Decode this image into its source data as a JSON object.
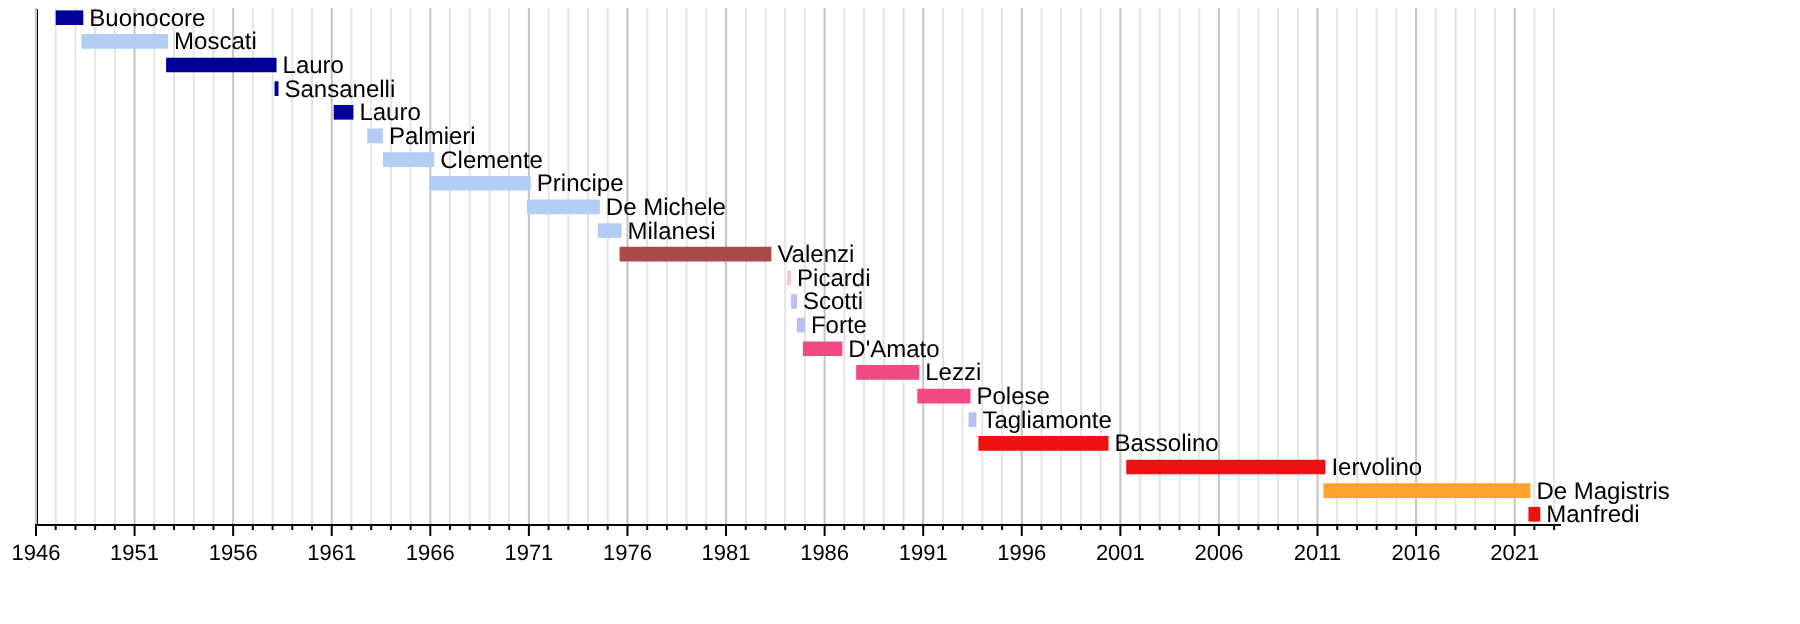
{
  "chart_data": {
    "type": "bar",
    "orientation": "horizontal",
    "grid": "x",
    "categories": [
      "Buonocore",
      "Moscati",
      "Lauro",
      "Sansanelli",
      "Lauro",
      "Palmieri",
      "Clemente",
      "Principe",
      "De Michele",
      "Milanesi",
      "Valenzi",
      "Picardi",
      "Scotti",
      "Forte",
      "D'Amato",
      "Lezzi",
      "Polese",
      "Tagliamonte",
      "Bassolino",
      "Iervolino",
      "De Magistris",
      "Manfredi"
    ],
    "base": [
      1947.0,
      1948.3,
      1952.6,
      1958.1,
      1961.1,
      1962.8,
      1963.6,
      1966.0,
      1970.9,
      1974.5,
      1975.6,
      1984.1,
      1984.3,
      1984.6,
      1984.9,
      1987.6,
      1990.7,
      1993.3,
      1993.8,
      2001.3,
      2011.3,
      2021.7
    ],
    "values": [
      1.4,
      4.4,
      5.6,
      0.2,
      1.0,
      0.8,
      2.6,
      5.1,
      3.7,
      1.2,
      7.7,
      0.2,
      0.3,
      0.4,
      2.0,
      3.2,
      2.7,
      0.4,
      6.6,
      10.1,
      10.5,
      0.6
    ],
    "colors": [
      "#000099",
      "#b3cdf5",
      "#000099",
      "#000099",
      "#000099",
      "#b3cdf5",
      "#b3cdf5",
      "#b3cdf5",
      "#b3cdf5",
      "#b3cdf5",
      "#aa4a4a",
      "#f5c5cf",
      "#b8c0f5",
      "#b8c0f5",
      "#f04a80",
      "#f04a80",
      "#f04a80",
      "#b8c0f5",
      "#ee1111",
      "#ee1111",
      "#ffa32c",
      "#ee1111"
    ],
    "xlim": [
      1946,
      2023.3
    ],
    "xticks": [
      1946,
      {
        "value": 1947,
        "label": null
      },
      {
        "value": 1948,
        "label": null
      },
      {
        "value": 1949,
        "label": null
      },
      {
        "value": 1950,
        "label": null
      },
      1951,
      {
        "value": 1952,
        "label": null
      },
      {
        "value": 1953,
        "label": null
      },
      {
        "value": 1954,
        "label": null
      },
      {
        "value": 1955,
        "label": null
      },
      1956,
      {
        "value": 1957,
        "label": null
      },
      {
        "value": 1958,
        "label": null
      },
      {
        "value": 1959,
        "label": null
      },
      {
        "value": 1960,
        "label": null
      },
      1961,
      {
        "value": 1962,
        "label": null
      },
      {
        "value": 1963,
        "label": null
      },
      {
        "value": 1964,
        "label": null
      },
      {
        "value": 1965,
        "label": null
      },
      1966,
      {
        "value": 1967,
        "label": null
      },
      {
        "value": 1968,
        "label": null
      },
      {
        "value": 1969,
        "label": null
      },
      {
        "value": 1970,
        "label": null
      },
      1971,
      {
        "value": 1972,
        "label": null
      },
      {
        "value": 1973,
        "label": null
      },
      {
        "value": 1974,
        "label": null
      },
      {
        "value": 1975,
        "label": null
      },
      1976,
      {
        "value": 1977,
        "label": null
      },
      {
        "value": 1978,
        "label": null
      },
      {
        "value": 1979,
        "label": null
      },
      {
        "value": 1980,
        "label": null
      },
      1981,
      {
        "value": 1982,
        "label": null
      },
      {
        "value": 1983,
        "label": null
      },
      {
        "value": 1984,
        "label": null
      },
      {
        "value": 1985,
        "label": null
      },
      1986,
      {
        "value": 1987,
        "label": null
      },
      {
        "value": 1988,
        "label": null
      },
      {
        "value": 1989,
        "label": null
      },
      {
        "value": 1990,
        "label": null
      },
      1991,
      {
        "value": 1992,
        "label": null
      },
      {
        "value": 1993,
        "label": null
      },
      {
        "value": 1994,
        "label": null
      },
      {
        "value": 1995,
        "label": null
      },
      1996,
      {
        "value": 1997,
        "label": null
      },
      {
        "value": 1998,
        "label": null
      },
      {
        "value": 1999,
        "label": null
      },
      {
        "value": 2000,
        "label": null
      },
      2001,
      {
        "value": 2002,
        "label": null
      },
      {
        "value": 2003,
        "label": null
      },
      {
        "value": 2004,
        "label": null
      },
      {
        "value": 2005,
        "label": null
      },
      2006,
      {
        "value": 2007,
        "label": null
      },
      {
        "value": 2008,
        "label": null
      },
      {
        "value": 2009,
        "label": null
      },
      {
        "value": 2010,
        "label": null
      },
      2011,
      {
        "value": 2012,
        "label": null
      },
      {
        "value": 2013,
        "label": null
      },
      {
        "value": 2014,
        "label": null
      },
      {
        "value": 2015,
        "label": null
      },
      2016,
      {
        "value": 2017,
        "label": null
      },
      {
        "value": 2018,
        "label": null
      },
      {
        "value": 2019,
        "label": null
      },
      {
        "value": 2020,
        "label": null
      },
      2021,
      {
        "value": 2022,
        "label": null
      },
      {
        "value": 2023,
        "label": null
      }
    ]
  }
}
